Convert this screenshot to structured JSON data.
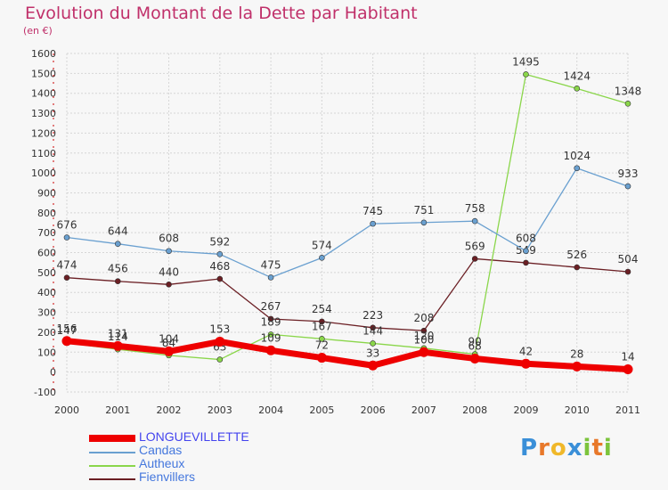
{
  "title": "Evolution du Montant de la Dette par Habitant",
  "unit_label": "(en €)",
  "brand": {
    "letters": [
      "P",
      "r",
      "o",
      "x",
      "i",
      "t",
      "i"
    ],
    "colors": [
      "#3a8fd8",
      "#e8782a",
      "#f0b82a",
      "#3a8fd8",
      "#7cc43c",
      "#e8782a",
      "#7cc43c"
    ]
  },
  "chart_data": {
    "type": "line",
    "x": [
      "2000",
      "2001",
      "2002",
      "2003",
      "2004",
      "2005",
      "2006",
      "2007",
      "2008",
      "2009",
      "2010",
      "2011"
    ],
    "ylim": [
      -100,
      1600
    ],
    "yticks": [
      -100,
      0,
      100,
      200,
      300,
      400,
      500,
      600,
      700,
      800,
      900,
      1000,
      1100,
      1200,
      1300,
      1400,
      1500,
      1600
    ],
    "grid": true,
    "legend_position": "bottom-left",
    "series": [
      {
        "name": "Fienvillers",
        "color": "#6b1f24",
        "values": [
          474,
          456,
          440,
          468,
          267,
          254,
          223,
          208,
          569,
          549,
          526,
          504
        ]
      },
      {
        "name": "Autheux",
        "color": "#8ad64a",
        "values": [
          147,
          114,
          84,
          63,
          189,
          167,
          144,
          120,
          90,
          1495,
          1424,
          1348
        ]
      },
      {
        "name": "Candas",
        "color": "#6aa0d0",
        "values": [
          676,
          644,
          608,
          592,
          475,
          574,
          745,
          751,
          758,
          608,
          1024,
          933
        ]
      },
      {
        "name": "LONGUEVILLETTE",
        "color": "#ee0000",
        "values": [
          156,
          131,
          104,
          153,
          109,
          72,
          33,
          100,
          68,
          42,
          28,
          14
        ]
      }
    ],
    "legend": [
      "LONGUEVILLETTE",
      "Candas",
      "Autheux",
      "Fienvillers"
    ]
  }
}
